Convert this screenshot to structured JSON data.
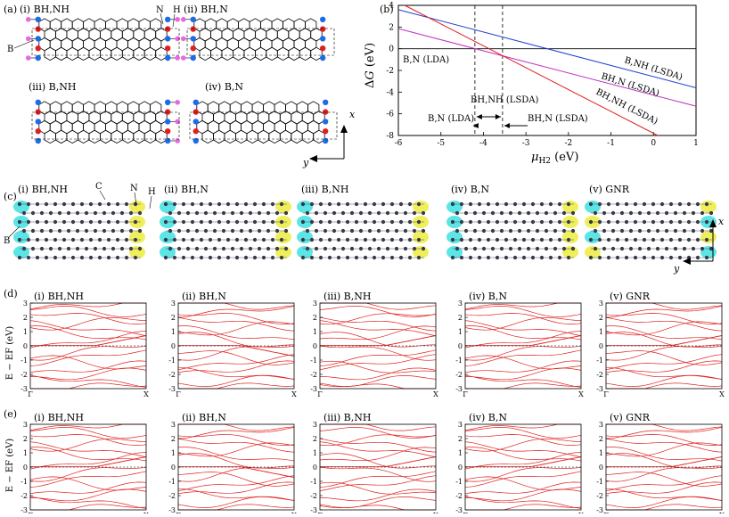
{
  "panel_a": {
    "label": "(a)",
    "structures": [
      {
        "roman": "(i)",
        "name": "BH,NH"
      },
      {
        "roman": "(ii)",
        "name": "BH,N"
      },
      {
        "roman": "(iii)",
        "name": "B,NH"
      },
      {
        "roman": "(iv)",
        "name": "B,N"
      }
    ],
    "atom_labels": {
      "N": "N",
      "H": "H",
      "B": "B"
    },
    "axes": {
      "x": "x",
      "y": "y"
    },
    "colors": {
      "N": "#1e6be6",
      "H": "#e868e0",
      "B": "#e02020"
    }
  },
  "panel_b": {
    "label": "(b)",
    "chart_data": {
      "type": "line",
      "xlabel": "μH2 (eV)",
      "ylabel": "ΔG (eV)",
      "xlim": [
        -6,
        1
      ],
      "ylim": [
        -8,
        4
      ],
      "xticks": [
        "-6",
        "-5",
        "-4",
        "-3",
        "-2",
        "-1",
        "0",
        "1"
      ],
      "yticks": [
        "4",
        "2",
        "0",
        "-2",
        "-4",
        "-6",
        "-8"
      ],
      "vlines": [
        -4.2,
        -3.55
      ],
      "series": [
        {
          "name": "B,NH (LSDA)",
          "color": "#2040d0",
          "points": [
            [
              -6,
              3.6
            ],
            [
              1,
              -3.6
            ]
          ]
        },
        {
          "name": "BH,N (LSDA)",
          "color": "#c030c0",
          "points": [
            [
              -6,
              1.85
            ],
            [
              1,
              -5.3
            ]
          ]
        },
        {
          "name": "BH,NH (LSDA)",
          "color": "#e02020",
          "points": [
            [
              -5.85,
              4
            ],
            [
              0.1,
              -8
            ]
          ]
        }
      ],
      "annotations": {
        "bn_lda": "B,N (LDA)",
        "bhnh_lsda_top": "BH,NH (LSDA)",
        "bn_lda_arrow": "B,N (LDA)",
        "bhn_lsda_arrow": "BH,N (LSDA)",
        "bnh_line": "B,NH (LSDA)",
        "bhn_line": "BH,N (LSDA)",
        "bhnh_line": "BH,NH (LSDA)"
      }
    }
  },
  "panel_c": {
    "label": "(c)",
    "structures": [
      {
        "roman": "(i)",
        "name": "BH,NH"
      },
      {
        "roman": "(ii)",
        "name": "BH,N"
      },
      {
        "roman": "(iii)",
        "name": "B,NH"
      },
      {
        "roman": "(iv)",
        "name": "B,N"
      },
      {
        "roman": "(v)",
        "name": "GNR"
      }
    ],
    "atom_labels": {
      "C": "C",
      "N": "N",
      "H": "H",
      "B": "B"
    },
    "axes": {
      "x": "x",
      "y": "y"
    },
    "iso_colors": {
      "up": "#ecec40",
      "down": "#40e0e0"
    }
  },
  "panel_d": {
    "label": "(d)",
    "ylabel": "E − EF (eV)",
    "yticks": [
      "3",
      "2",
      "1",
      "0",
      "-1",
      "-2",
      "-3"
    ],
    "xticks": [
      "Γ",
      "X"
    ],
    "titles": [
      {
        "roman": "(i)",
        "name": "BH,NH"
      },
      {
        "roman": "(ii)",
        "name": "BH,N"
      },
      {
        "roman": "(iii)",
        "name": "B,NH"
      },
      {
        "roman": "(iv)",
        "name": "B,N"
      },
      {
        "roman": "(v)",
        "name": "GNR"
      }
    ]
  },
  "panel_e": {
    "label": "(e)",
    "ylabel": "E − EF (eV)",
    "yticks": [
      "3",
      "2",
      "1",
      "0",
      "-1",
      "-2",
      "-3"
    ],
    "xticks": [
      "Γ",
      "X"
    ],
    "titles": [
      {
        "roman": "(i)",
        "name": "BH,NH"
      },
      {
        "roman": "(ii)",
        "name": "BH,N"
      },
      {
        "roman": "(iii)",
        "name": "B,NH"
      },
      {
        "roman": "(iv)",
        "name": "B,N"
      },
      {
        "roman": "(v)",
        "name": "GNR"
      }
    ]
  },
  "band_color": "#e02020"
}
